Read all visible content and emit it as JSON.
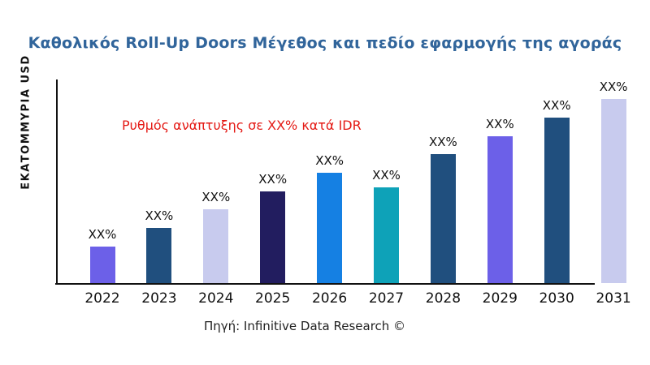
{
  "chart_data": {
    "type": "bar",
    "title": "Καθολικός Roll-Up Doors Μέγεθος και πεδίο εφαρμογής της αγοράς",
    "ylabel": "ΕΚΑΤΟΜΜΥΡΙΑ USD",
    "xlabel": "",
    "annotation": "Ρυθμός ανάπτυξης σε XX% κατά IDR",
    "source": "Πηγή: Infinitive Data Research ©",
    "categories": [
      "2022",
      "2023",
      "2024",
      "2025",
      "2026",
      "2027",
      "2028",
      "2029",
      "2030",
      "2031"
    ],
    "values": [
      18,
      27,
      36,
      45,
      54,
      47,
      63,
      72,
      81,
      90
    ],
    "bar_labels": [
      "XX%",
      "XX%",
      "XX%",
      "XX%",
      "XX%",
      "XX%",
      "XX%",
      "XX%",
      "XX%",
      "XX%"
    ],
    "bar_colors": [
      "#6c60e8",
      "#204f7e",
      "#c8cbee",
      "#221d5f",
      "#1580e3",
      "#0ea2b8",
      "#204f7e",
      "#6c60e8",
      "#204f7e",
      "#c8cbee"
    ],
    "ylim": [
      0,
      100
    ],
    "grid": false,
    "legend": null,
    "colors": {
      "title": "#31659b",
      "annotation": "#e41a15",
      "axis": "#111111",
      "label_text": "#111111"
    }
  }
}
